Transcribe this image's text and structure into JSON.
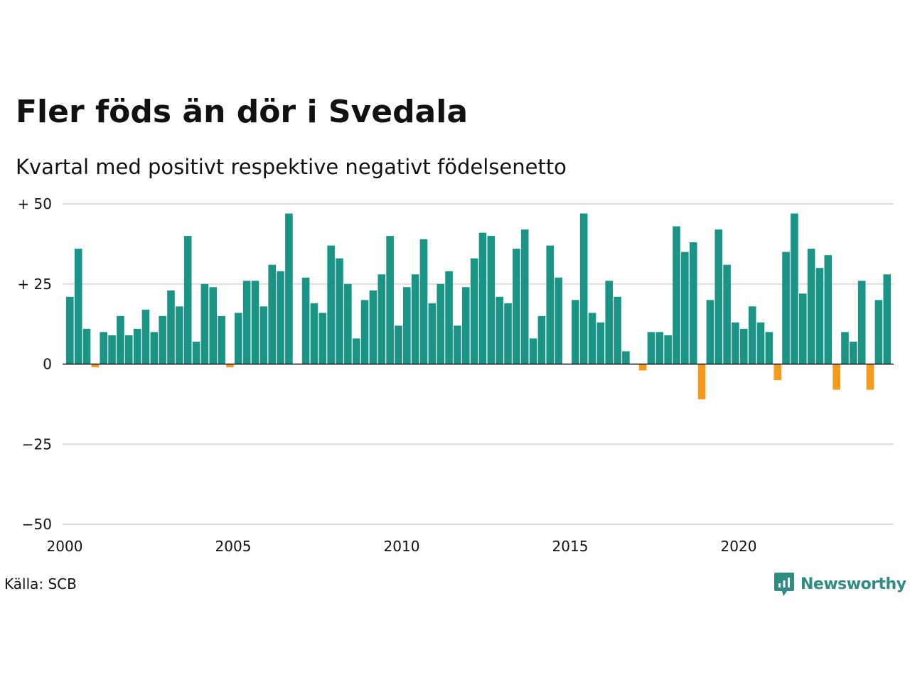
{
  "title": "Fler föds än dör i Svedala",
  "subtitle": "Kvartal med positivt respektive negativt födelsenetto",
  "source": "Källa: SCB",
  "brand": {
    "name": "Newsworthy",
    "icon": "newsworthy-logo-icon",
    "color": "#2e8c82"
  },
  "chart_data": {
    "type": "bar",
    "title": "Fler föds än dör i Svedala",
    "subtitle": "Kvartal med positivt respektive negativt födelsenetto",
    "x_start": 2000,
    "x_end": 2024.75,
    "x_step": 0.25,
    "xticks": [
      2000,
      2005,
      2010,
      2015,
      2020
    ],
    "xtick_labels": [
      "2000",
      "2005",
      "2010",
      "2015",
      "2020"
    ],
    "ylim": [
      -50,
      50
    ],
    "yticks": [
      50,
      25,
      0,
      -25,
      -50
    ],
    "ytick_labels": [
      "+ 50",
      "+ 25",
      "0",
      "−25",
      "−50"
    ],
    "grid": true,
    "colors": {
      "positive": "#1a9485",
      "negative": "#f59a1b"
    },
    "values": [
      21,
      36,
      11,
      -1,
      10,
      9,
      15,
      9,
      11,
      17,
      10,
      15,
      23,
      18,
      40,
      7,
      25,
      24,
      15,
      -1,
      16,
      26,
      26,
      18,
      31,
      29,
      47,
      0,
      27,
      19,
      16,
      37,
      33,
      25,
      8,
      20,
      23,
      28,
      40,
      12,
      24,
      28,
      39,
      19,
      25,
      29,
      12,
      24,
      33,
      41,
      40,
      21,
      19,
      36,
      42,
      8,
      15,
      37,
      27,
      0,
      20,
      47,
      16,
      13,
      26,
      21,
      4,
      0,
      -2,
      10,
      10,
      9,
      43,
      35,
      38,
      -11,
      20,
      42,
      31,
      13,
      11,
      18,
      13,
      10,
      -5,
      35,
      47,
      22,
      36,
      30,
      34,
      -8,
      10,
      7,
      26,
      -8,
      20,
      28
    ]
  }
}
